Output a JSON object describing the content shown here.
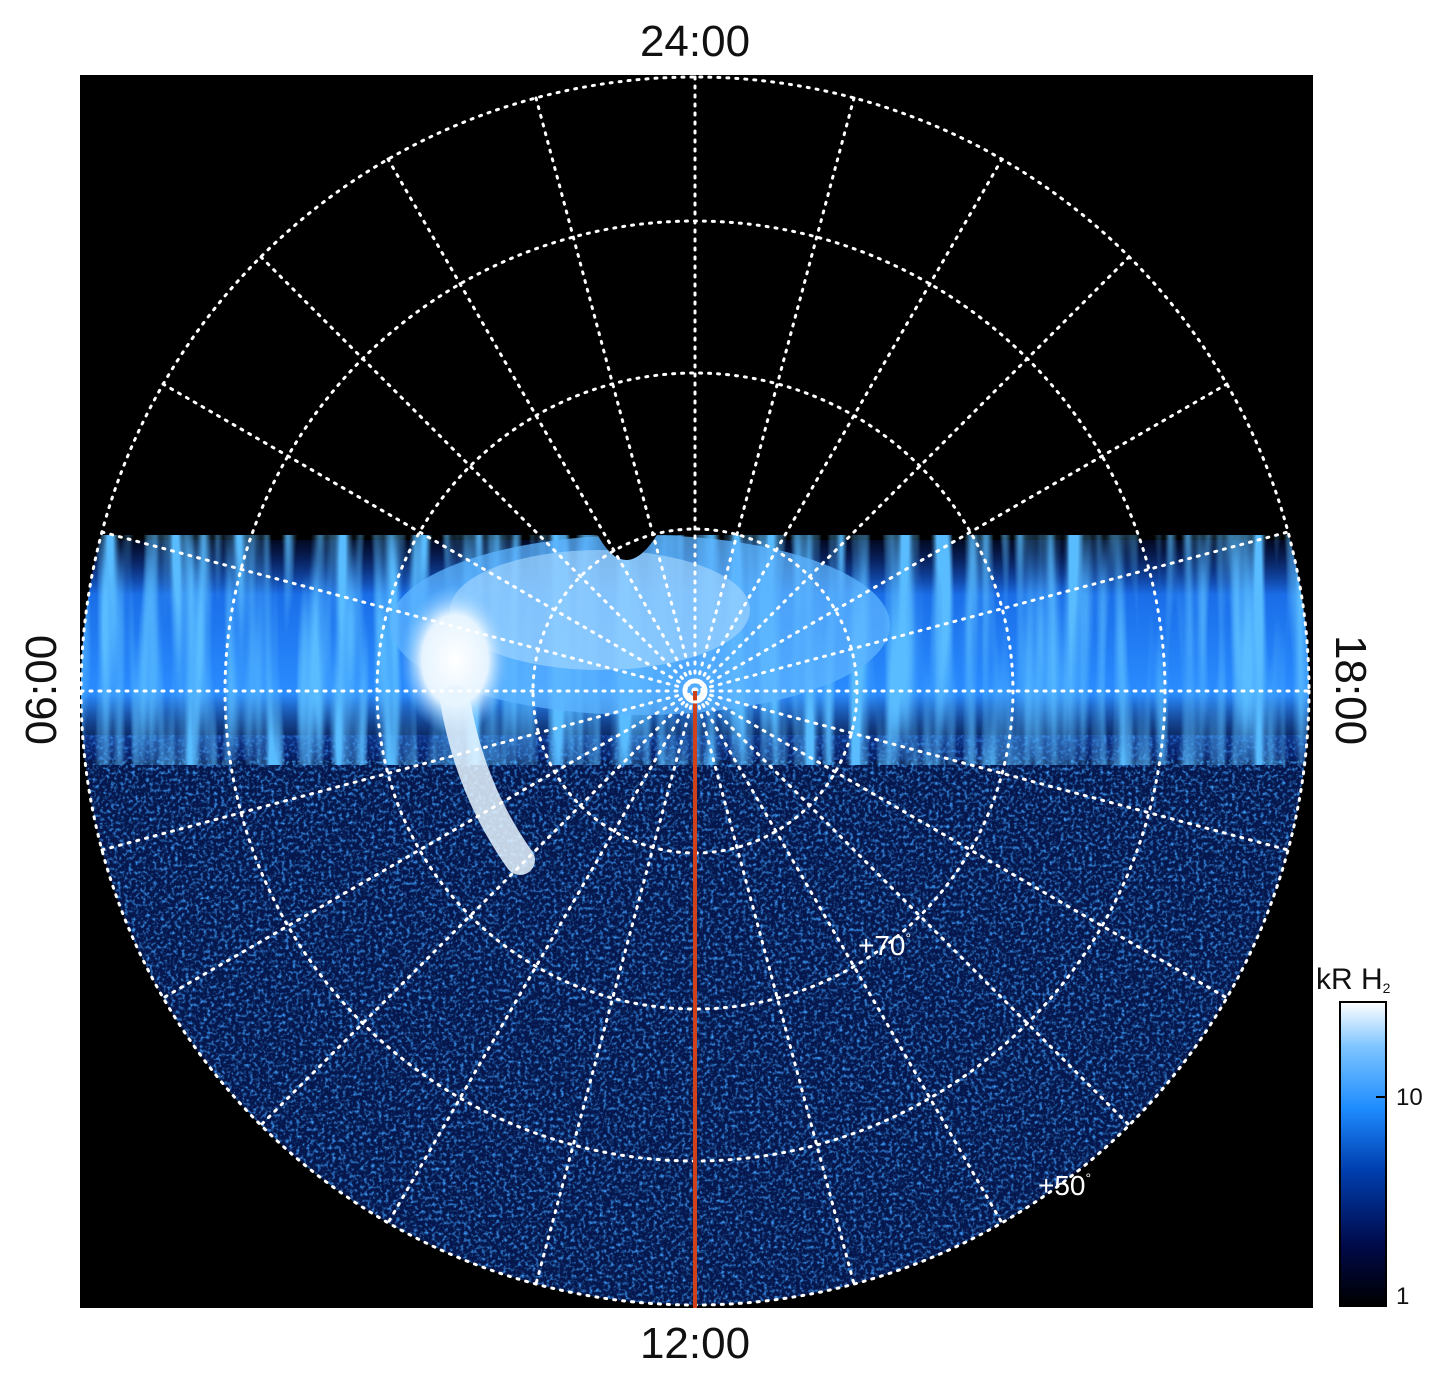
{
  "local_time_labels": {
    "top": "24:00",
    "bottom": "12:00",
    "left": "06:00",
    "right": "18:00"
  },
  "latitude_labels": [
    {
      "value": "+70",
      "unit": "°"
    },
    {
      "value": "+50",
      "unit": "°"
    }
  ],
  "colorbar": {
    "title": "kR H",
    "title_subscript": "2",
    "ticks": [
      "10",
      "1"
    ],
    "scale": "log",
    "colors": [
      "#000000",
      "#000a4a",
      "#003fb0",
      "#1e8cff",
      "#7cc4ff",
      "#ffffff"
    ]
  },
  "overlay": {
    "meridian_line_color": "#d0401a",
    "grid_color": "#ffffff",
    "background": "#000000"
  }
}
